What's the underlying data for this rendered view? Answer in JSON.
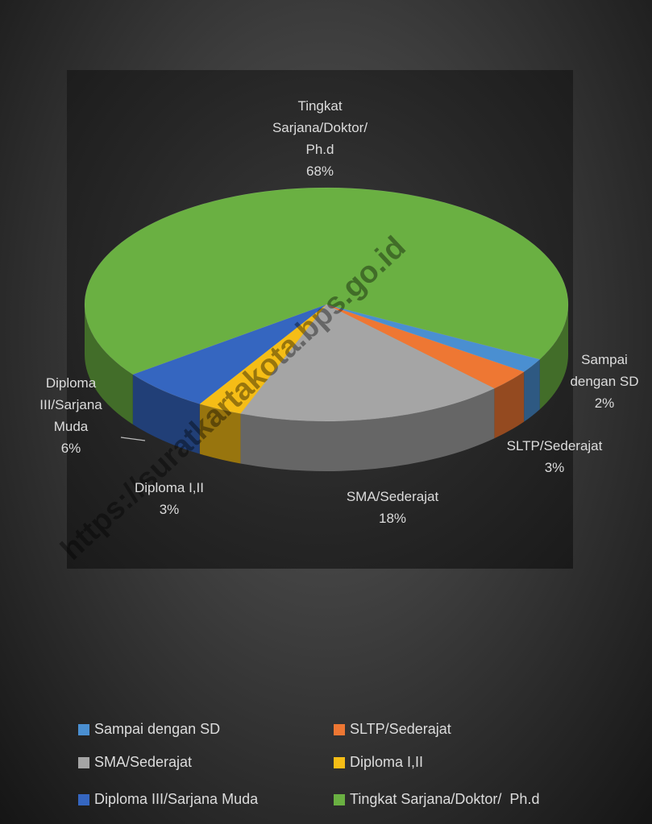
{
  "chart_data": {
    "type": "pie3d",
    "categories": [
      "Sampai dengan SD",
      "SLTP/Sederajat",
      "SMA/Sederajat",
      "Diploma I,II",
      "Diploma III/Sarjana Muda",
      "Tingkat Sarjana/Doktor/  Ph.d"
    ],
    "values": [
      2,
      3,
      18,
      3,
      6,
      68
    ],
    "value_labels": [
      "2%",
      "3%",
      "18%",
      "3%",
      "6%",
      "68%"
    ],
    "colors": [
      "#4a8fd1",
      "#ee7733",
      "#a5a5a5",
      "#f5bd16",
      "#3566c0",
      "#6ab042"
    ],
    "legend": "bottom",
    "watermark": "https://suratkartakota.bps.go.id"
  }
}
